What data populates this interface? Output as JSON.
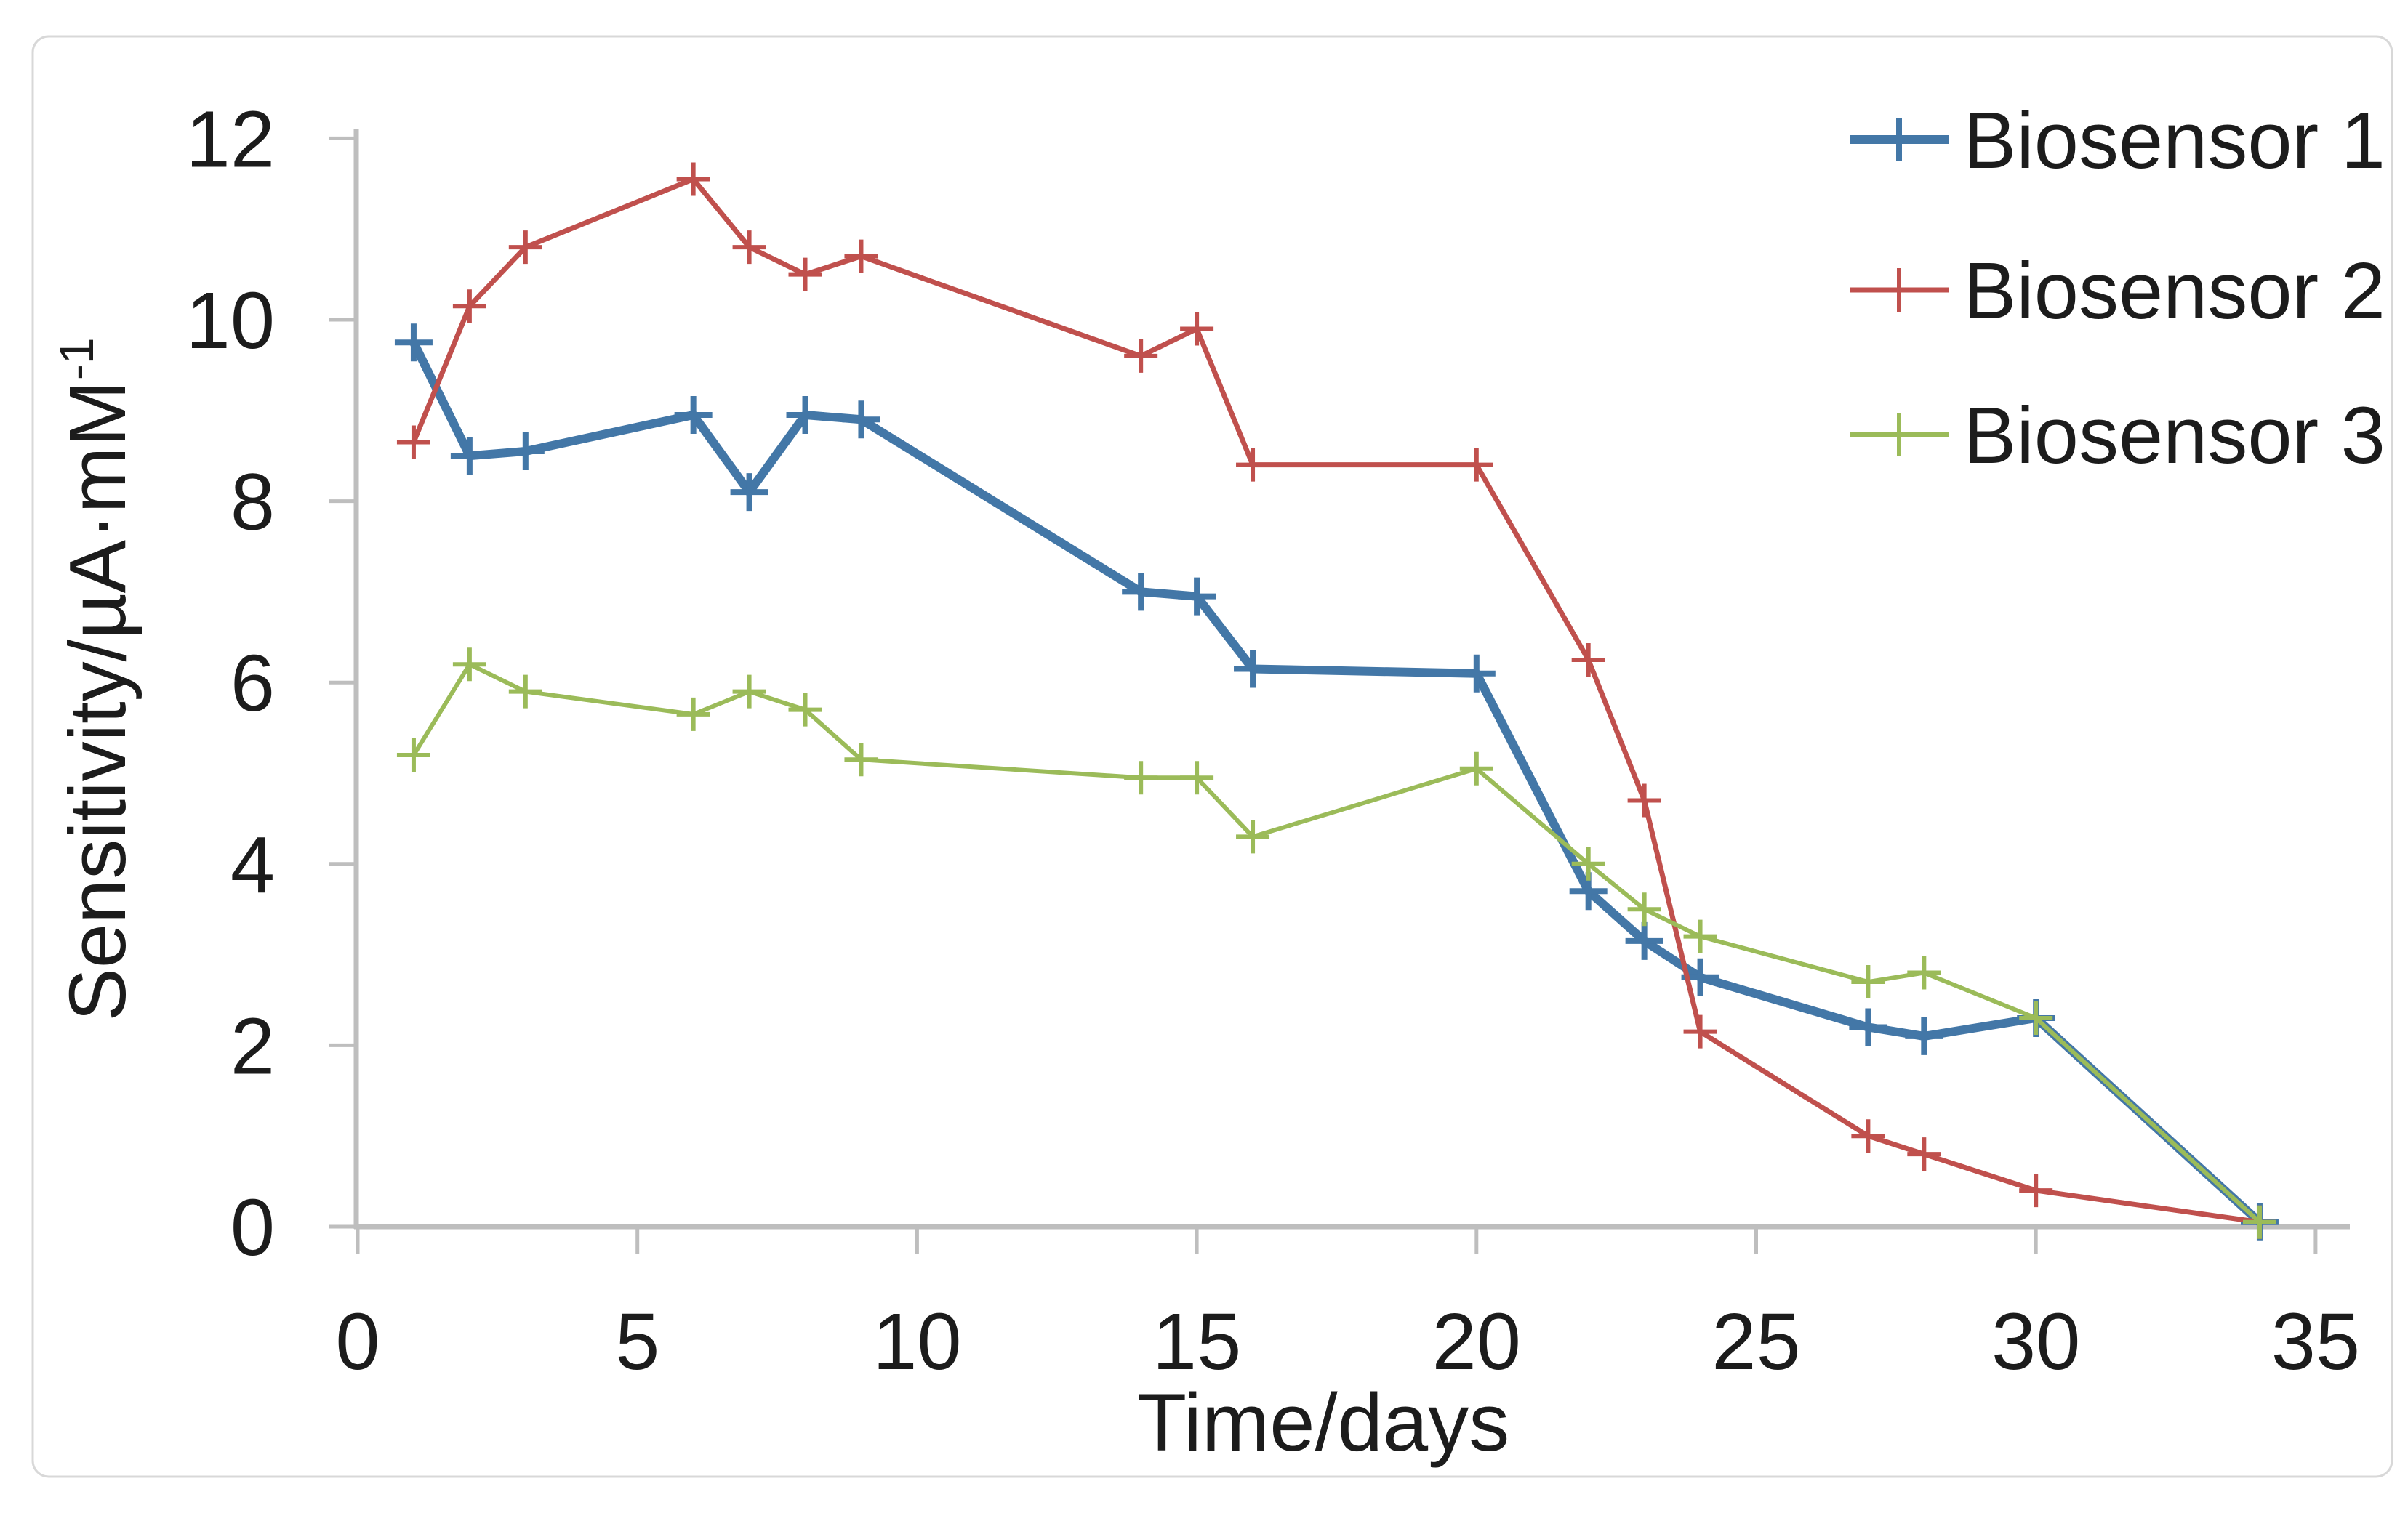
{
  "chart_data": {
    "type": "line",
    "x": [
      1,
      2,
      3,
      6,
      7,
      8,
      9,
      14,
      15,
      16,
      20,
      22,
      23,
      24,
      27,
      28,
      30,
      34
    ],
    "series": [
      {
        "name": "Biosensor 1",
        "color": "#4377A7",
        "line_width": 12,
        "values": [
          9.75,
          8.5,
          8.55,
          8.95,
          8.1,
          8.95,
          8.9,
          7.0,
          6.95,
          6.15,
          6.1,
          3.7,
          3.15,
          2.75,
          2.2,
          2.1,
          2.3,
          0.05
        ]
      },
      {
        "name": "Biosensor 2",
        "color": "#C0504D",
        "line_width": 7,
        "values": [
          8.65,
          10.15,
          10.8,
          11.55,
          10.8,
          10.5,
          10.7,
          9.6,
          9.9,
          8.4,
          8.4,
          6.25,
          4.7,
          2.15,
          1.0,
          0.8,
          0.4,
          0.05
        ]
      },
      {
        "name": "Biosensor 3",
        "color": "#9BBB59",
        "line_width": 6,
        "values": [
          5.2,
          6.2,
          5.9,
          5.65,
          5.9,
          5.7,
          5.15,
          4.95,
          4.95,
          4.3,
          5.05,
          4.0,
          3.5,
          3.2,
          2.7,
          2.8,
          2.3,
          0.05
        ]
      }
    ],
    "marker": "plus",
    "xlabel": "Time/days",
    "ylabel": "Sensitivity/µA·mM⁻¹",
    "ylabel_base": "Sensitivity/µA·mM",
    "ylabel_sup": "-1",
    "x_ticks": [
      0,
      5,
      10,
      15,
      20,
      25,
      30,
      35
    ],
    "y_ticks": [
      0,
      2,
      4,
      6,
      8,
      10,
      12
    ],
    "xlim": [
      0,
      35.6
    ],
    "ylim": [
      0,
      12
    ],
    "grid": false,
    "legend_position": "top-right",
    "axis_color": "#BEBEBE",
    "text_color": "#1C1C1C",
    "border_color": "#D8D8D8",
    "background_color": "#FFFFFF"
  }
}
